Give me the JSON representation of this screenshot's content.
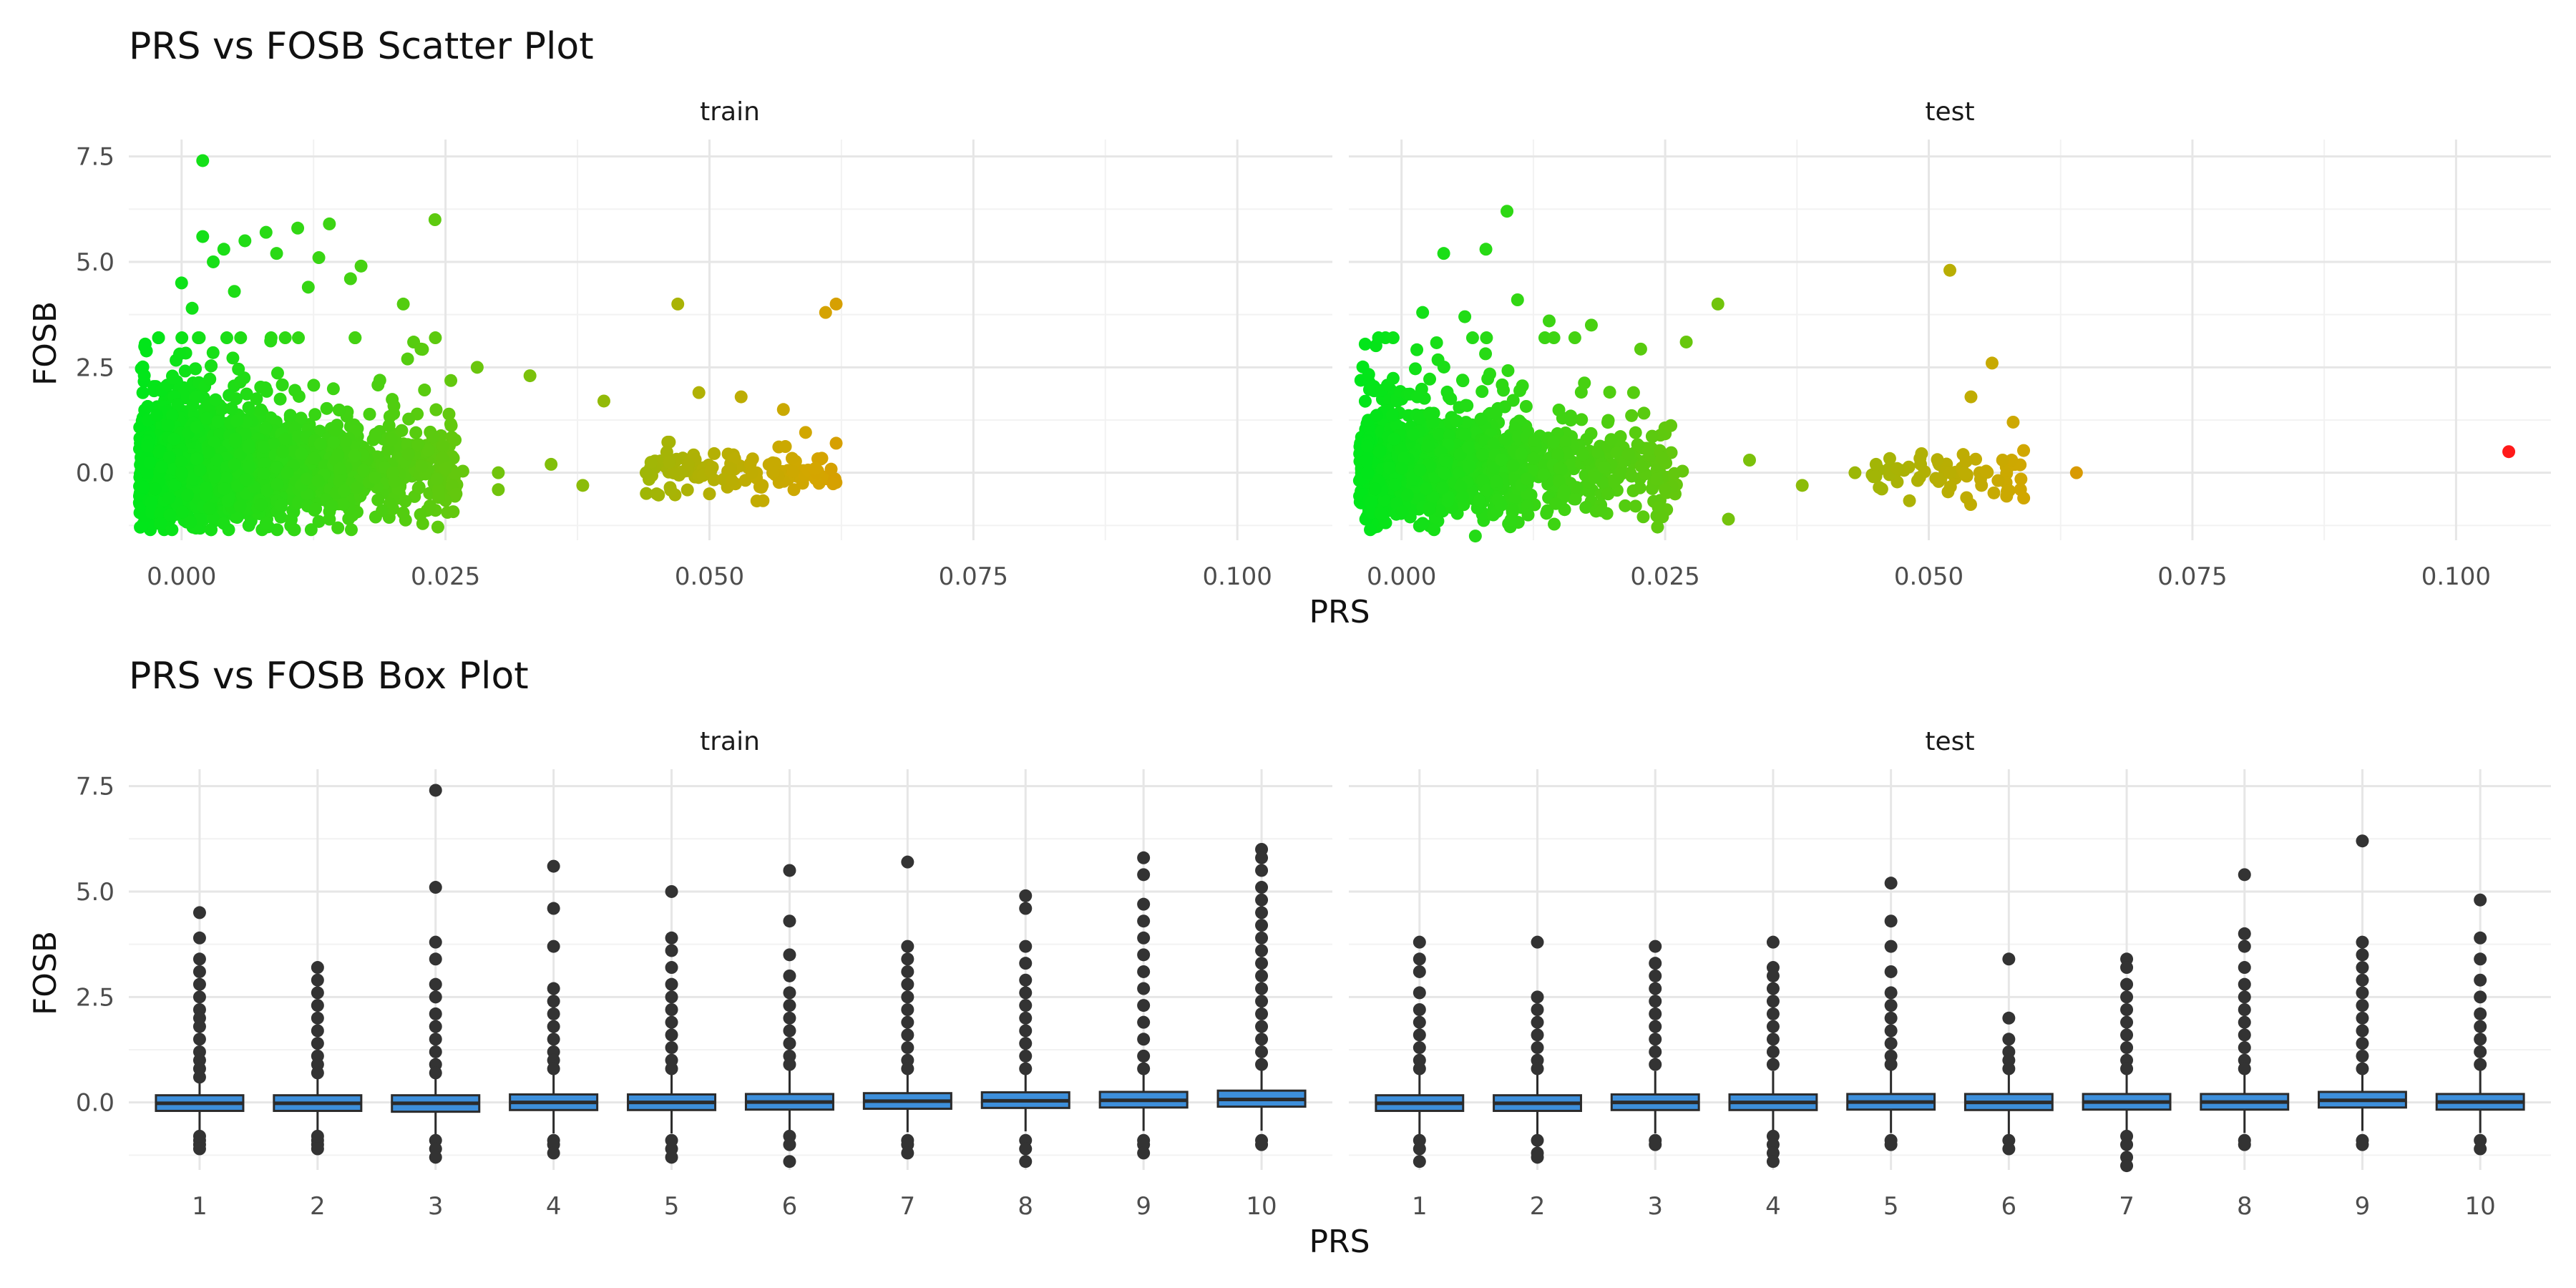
{
  "figure": {
    "titles": {
      "scatter": "PRS vs FOSB Scatter Plot",
      "box": "PRS vs FOSB Box Plot"
    },
    "panel_labels": [
      "train",
      "test"
    ],
    "xlabel": "PRS",
    "ylabel": "FOSB"
  },
  "chart_data": [
    {
      "type": "scatter",
      "title": "PRS vs FOSB Scatter Plot",
      "xlabel": "PRS",
      "ylabel": "FOSB",
      "facets": [
        "train",
        "test"
      ],
      "xlim": [
        -0.005,
        0.109
      ],
      "ylim": [
        -1.6,
        7.9
      ],
      "x_ticks": [
        0.0,
        0.025,
        0.05,
        0.075,
        0.1
      ],
      "x_tick_labels": [
        "0.000",
        "0.025",
        "0.050",
        "0.075",
        "0.100"
      ],
      "y_ticks": [
        0.0,
        2.5,
        5.0,
        7.5
      ],
      "y_tick_labels": [
        "0.0",
        "2.5",
        "5.0",
        "7.5"
      ],
      "color_scale": {
        "low": "#00e61a",
        "mid": "#d4a600",
        "high": "#ff1a1a",
        "by": "PRS"
      },
      "grid": true,
      "legend": "none",
      "series": [
        {
          "name": "train",
          "points": [
            [
              0.002,
              7.4
            ],
            [
              0.0,
              4.5
            ],
            [
              0.002,
              5.6
            ],
            [
              0.004,
              5.3
            ],
            [
              0.006,
              5.5
            ],
            [
              0.008,
              5.7
            ],
            [
              0.011,
              5.8
            ],
            [
              0.014,
              5.9
            ],
            [
              0.017,
              4.9
            ],
            [
              0.024,
              6.0
            ],
            [
              0.013,
              5.1
            ],
            [
              0.009,
              5.2
            ],
            [
              0.003,
              5.0
            ],
            [
              0.001,
              3.9
            ],
            [
              0.005,
              4.3
            ],
            [
              0.012,
              4.4
            ],
            [
              0.016,
              4.6
            ],
            [
              0.021,
              4.0
            ],
            [
              0.028,
              2.5
            ],
            [
              0.033,
              2.3
            ],
            [
              0.04,
              1.7
            ],
            [
              0.047,
              4.0
            ],
            [
              0.049,
              1.9
            ],
            [
              0.053,
              1.8
            ],
            [
              0.057,
              1.5
            ],
            [
              0.061,
              3.8
            ],
            [
              0.062,
              4.0
            ],
            [
              0.062,
              0.7
            ],
            [
              0.045,
              -0.5
            ],
            [
              0.05,
              -0.5
            ],
            [
              0.055,
              -0.3
            ],
            [
              0.058,
              -0.4
            ],
            [
              0.038,
              -0.3
            ],
            [
              0.03,
              -0.4
            ],
            [
              0.026,
              -0.5
            ],
            [
              0.019,
              -0.9
            ],
            [
              0.014,
              -1.1
            ],
            [
              0.008,
              -1.2
            ],
            [
              0.004,
              -1.2
            ],
            [
              -0.002,
              -1.2
            ],
            [
              0.0,
              0.0
            ],
            [
              0.005,
              0.2
            ],
            [
              0.01,
              0.0
            ],
            [
              0.015,
              0.1
            ],
            [
              0.02,
              0.0
            ],
            [
              0.025,
              0.1
            ],
            [
              0.03,
              0.0
            ],
            [
              0.035,
              0.2
            ],
            [
              0.044,
              0.0
            ],
            [
              0.048,
              0.2
            ],
            [
              0.052,
              0.1
            ],
            [
              0.056,
              0.0
            ],
            [
              0.06,
              0.1
            ]
          ]
        },
        {
          "name": "test",
          "points": [
            [
              0.01,
              6.2
            ],
            [
              0.004,
              5.2
            ],
            [
              0.008,
              5.3
            ],
            [
              0.011,
              4.1
            ],
            [
              0.002,
              3.8
            ],
            [
              0.006,
              3.7
            ],
            [
              0.014,
              3.6
            ],
            [
              0.018,
              3.5
            ],
            [
              0.03,
              4.0
            ],
            [
              0.027,
              3.1
            ],
            [
              0.052,
              4.8
            ],
            [
              0.056,
              2.6
            ],
            [
              0.054,
              1.8
            ],
            [
              0.058,
              1.2
            ],
            [
              0.022,
              1.9
            ],
            [
              0.033,
              0.3
            ],
            [
              0.038,
              -0.3
            ],
            [
              0.031,
              -1.1
            ],
            [
              0.059,
              -0.6
            ],
            [
              0.064,
              0.0
            ],
            [
              0.105,
              0.5
            ],
            [
              0.047,
              0.1
            ],
            [
              0.052,
              0.0
            ],
            [
              0.045,
              0.2
            ],
            [
              0.015,
              0.1
            ],
            [
              0.009,
              -0.2
            ],
            [
              0.004,
              0.0
            ],
            [
              0.0,
              0.1
            ],
            [
              0.007,
              -1.5
            ],
            [
              0.002,
              -1.2
            ],
            [
              0.012,
              -1.0
            ],
            [
              0.019,
              -0.9
            ],
            [
              0.025,
              -0.4
            ],
            [
              0.055,
              -0.3
            ],
            [
              0.057,
              0.3
            ],
            [
              0.043,
              0.0
            ]
          ]
        }
      ],
      "note_dense_cluster": "most points concentrated at PRS -0.004 to 0.03, FOSB -1.3 to 2.5"
    },
    {
      "type": "box",
      "title": "PRS vs FOSB Box Plot",
      "xlabel": "PRS",
      "ylabel": "FOSB",
      "facets": [
        "train",
        "test"
      ],
      "categories": [
        "1",
        "2",
        "3",
        "4",
        "5",
        "6",
        "7",
        "8",
        "9",
        "10"
      ],
      "ylim": [
        -1.6,
        7.9
      ],
      "y_ticks": [
        0.0,
        2.5,
        5.0,
        7.5
      ],
      "y_tick_labels": [
        "0.0",
        "2.5",
        "5.0",
        "7.5"
      ],
      "box_fill": "#3d8fdb",
      "box_stroke": "#2b2b2b",
      "outlier_color": "#333333",
      "grid": true,
      "series": [
        {
          "name": "train",
          "boxes": [
            {
              "q1": -0.2,
              "median": -0.02,
              "q3": 0.17,
              "low_outliers": [
                -0.9,
                -1.0,
                -1.1,
                -0.8
              ],
              "high_outliers": [
                4.5,
                3.9,
                3.4,
                3.1,
                2.8,
                2.5,
                2.2,
                2.0,
                1.8,
                1.5,
                1.2,
                1.0,
                0.8,
                0.6
              ]
            },
            {
              "q1": -0.2,
              "median": -0.02,
              "q3": 0.17,
              "low_outliers": [
                -0.9,
                -1.0,
                -1.1,
                -0.8
              ],
              "high_outliers": [
                3.2,
                2.9,
                2.6,
                2.3,
                2.0,
                1.7,
                1.4,
                1.1,
                0.9,
                0.7
              ]
            },
            {
              "q1": -0.22,
              "median": -0.02,
              "q3": 0.17,
              "low_outliers": [
                -0.9,
                -1.1,
                -1.3
              ],
              "high_outliers": [
                7.4,
                5.1,
                3.8,
                3.4,
                2.8,
                2.5,
                2.1,
                1.8,
                1.5,
                1.2,
                0.9,
                0.7
              ]
            },
            {
              "q1": -0.18,
              "median": 0.0,
              "q3": 0.19,
              "low_outliers": [
                -0.9,
                -1.0,
                -1.2
              ],
              "high_outliers": [
                5.6,
                4.6,
                3.7,
                2.7,
                2.4,
                2.1,
                1.8,
                1.5,
                1.2,
                1.0,
                0.8
              ]
            },
            {
              "q1": -0.18,
              "median": 0.0,
              "q3": 0.19,
              "low_outliers": [
                -0.9,
                -1.1,
                -1.3
              ],
              "high_outliers": [
                5.0,
                3.9,
                3.6,
                3.2,
                2.8,
                2.5,
                2.2,
                1.9,
                1.6,
                1.3,
                1.0,
                0.8
              ]
            },
            {
              "q1": -0.17,
              "median": 0.01,
              "q3": 0.2,
              "low_outliers": [
                -0.8,
                -1.0,
                -1.4
              ],
              "high_outliers": [
                5.5,
                4.3,
                3.5,
                3.0,
                2.6,
                2.3,
                2.0,
                1.7,
                1.4,
                1.1,
                0.9
              ]
            },
            {
              "q1": -0.15,
              "median": 0.03,
              "q3": 0.22,
              "low_outliers": [
                -0.9,
                -1.0,
                -1.2
              ],
              "high_outliers": [
                5.7,
                3.7,
                3.4,
                3.1,
                2.8,
                2.5,
                2.2,
                1.9,
                1.6,
                1.3,
                1.0,
                0.8
              ]
            },
            {
              "q1": -0.13,
              "median": 0.04,
              "q3": 0.24,
              "low_outliers": [
                -0.9,
                -1.1,
                -1.4
              ],
              "high_outliers": [
                4.9,
                4.6,
                3.7,
                3.3,
                2.9,
                2.6,
                2.3,
                2.0,
                1.7,
                1.4,
                1.1,
                0.8
              ]
            },
            {
              "q1": -0.12,
              "median": 0.05,
              "q3": 0.25,
              "low_outliers": [
                -0.9,
                -1.0,
                -1.2
              ],
              "high_outliers": [
                5.8,
                5.4,
                4.7,
                4.3,
                3.9,
                3.5,
                3.1,
                2.7,
                2.3,
                1.9,
                1.5,
                1.1,
                0.8
              ]
            },
            {
              "q1": -0.1,
              "median": 0.07,
              "q3": 0.28,
              "low_outliers": [
                -0.9,
                -1.0
              ],
              "high_outliers": [
                6.0,
                5.8,
                5.5,
                5.1,
                4.8,
                4.5,
                4.2,
                3.9,
                3.6,
                3.3,
                3.0,
                2.7,
                2.4,
                2.1,
                1.8,
                1.5,
                1.2,
                0.9
              ]
            }
          ]
        },
        {
          "name": "test",
          "boxes": [
            {
              "q1": -0.2,
              "median": -0.02,
              "q3": 0.17,
              "low_outliers": [
                -0.9,
                -1.1,
                -1.4
              ],
              "high_outliers": [
                3.8,
                3.4,
                3.1,
                2.6,
                2.2,
                1.9,
                1.6,
                1.3,
                1.0,
                0.8
              ]
            },
            {
              "q1": -0.2,
              "median": -0.02,
              "q3": 0.17,
              "low_outliers": [
                -0.9,
                -1.2,
                -1.3
              ],
              "high_outliers": [
                3.8,
                2.5,
                2.2,
                1.9,
                1.6,
                1.3,
                1.0,
                0.8
              ]
            },
            {
              "q1": -0.18,
              "median": 0.0,
              "q3": 0.19,
              "low_outliers": [
                -0.9,
                -1.0
              ],
              "high_outliers": [
                3.7,
                3.3,
                3.0,
                2.7,
                2.4,
                2.1,
                1.8,
                1.5,
                1.2,
                0.9
              ]
            },
            {
              "q1": -0.18,
              "median": 0.0,
              "q3": 0.19,
              "low_outliers": [
                -0.8,
                -1.0,
                -1.2,
                -1.4
              ],
              "high_outliers": [
                3.8,
                3.2,
                3.0,
                2.7,
                2.4,
                2.1,
                1.8,
                1.5,
                1.2,
                0.9
              ]
            },
            {
              "q1": -0.17,
              "median": 0.01,
              "q3": 0.2,
              "low_outliers": [
                -0.9,
                -1.0
              ],
              "high_outliers": [
                5.2,
                4.3,
                3.7,
                3.1,
                2.6,
                2.3,
                2.0,
                1.7,
                1.4,
                1.1,
                0.9
              ]
            },
            {
              "q1": -0.18,
              "median": 0.0,
              "q3": 0.2,
              "low_outliers": [
                -0.9,
                -1.1
              ],
              "high_outliers": [
                3.4,
                2.0,
                1.5,
                1.2,
                1.0,
                0.8
              ]
            },
            {
              "q1": -0.17,
              "median": 0.01,
              "q3": 0.2,
              "low_outliers": [
                -0.8,
                -1.0,
                -1.3,
                -1.5
              ],
              "high_outliers": [
                3.4,
                3.2,
                2.8,
                2.5,
                2.2,
                1.9,
                1.6,
                1.3,
                1.0,
                0.8
              ]
            },
            {
              "q1": -0.17,
              "median": 0.01,
              "q3": 0.2,
              "low_outliers": [
                -0.9,
                -1.0
              ],
              "high_outliers": [
                5.4,
                4.0,
                3.7,
                3.2,
                2.8,
                2.5,
                2.2,
                1.9,
                1.6,
                1.3,
                1.0,
                0.8
              ]
            },
            {
              "q1": -0.12,
              "median": 0.05,
              "q3": 0.25,
              "low_outliers": [
                -0.9,
                -1.0
              ],
              "high_outliers": [
                6.2,
                3.8,
                3.5,
                3.2,
                2.9,
                2.6,
                2.3,
                2.0,
                1.7,
                1.4,
                1.1,
                0.8
              ]
            },
            {
              "q1": -0.17,
              "median": 0.01,
              "q3": 0.2,
              "low_outliers": [
                -0.9,
                -1.1
              ],
              "high_outliers": [
                4.8,
                3.9,
                3.4,
                2.9,
                2.5,
                2.1,
                1.8,
                1.5,
                1.2,
                0.9
              ]
            }
          ]
        }
      ]
    }
  ]
}
